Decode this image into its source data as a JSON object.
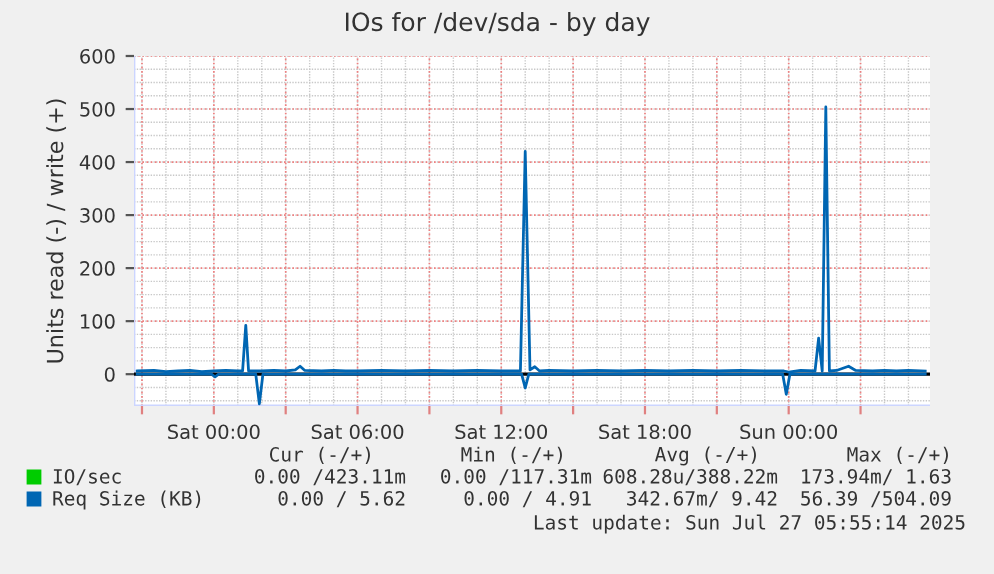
{
  "chart_data": {
    "type": "line",
    "title": "IOs for /dev/sda - by day",
    "ylabel": "Units read (-) / write (+)",
    "xlim": [
      "2025-07-25T20:40",
      "2025-07-27T05:54"
    ],
    "ylim": [
      -60,
      600
    ],
    "xticks": [
      {
        "value": "2025-07-25T21:00",
        "label": null
      },
      {
        "value": "2025-07-26T00:00",
        "label": "Sat 00:00"
      },
      {
        "value": "2025-07-26T03:00",
        "label": null
      },
      {
        "value": "2025-07-26T06:00",
        "label": "Sat 06:00"
      },
      {
        "value": "2025-07-26T09:00",
        "label": null
      },
      {
        "value": "2025-07-26T12:00",
        "label": "Sat 12:00"
      },
      {
        "value": "2025-07-26T15:00",
        "label": null
      },
      {
        "value": "2025-07-26T18:00",
        "label": "Sat 18:00"
      },
      {
        "value": "2025-07-26T21:00",
        "label": null
      },
      {
        "value": "2025-07-27T00:00",
        "label": "Sun 00:00"
      },
      {
        "value": "2025-07-27T03:00",
        "label": null
      }
    ],
    "yticks": [
      0,
      100,
      200,
      300,
      400,
      500,
      600
    ],
    "grid": true,
    "legend": "bottom",
    "ref_lines": [
      {
        "axis": "y",
        "value": 0,
        "label": null,
        "color": "#000000"
      }
    ],
    "series": [
      {
        "name": "IO/sec",
        "color": "#00cc00"
      },
      {
        "name": "Req Size (KB)",
        "color": "#0066b3",
        "x": [
          "2025-07-25T20:48",
          "2025-07-25T21:30",
          "2025-07-25T22:00",
          "2025-07-25T22:30",
          "2025-07-25T23:00",
          "2025-07-25T23:30",
          "2025-07-26T00:00",
          "2025-07-26T00:30",
          "2025-07-26T01:00",
          "2025-07-26T01:12",
          "2025-07-26T01:20",
          "2025-07-26T01:27",
          "2025-07-26T02:00",
          "2025-07-26T02:30",
          "2025-07-26T03:00",
          "2025-07-26T03:24",
          "2025-07-26T03:36",
          "2025-07-26T03:48",
          "2025-07-26T04:30",
          "2025-07-26T05:00",
          "2025-07-26T05:30",
          "2025-07-26T06:00",
          "2025-07-26T07:00",
          "2025-07-26T08:00",
          "2025-07-26T09:00",
          "2025-07-26T10:00",
          "2025-07-26T11:00",
          "2025-07-26T12:00",
          "2025-07-26T12:48",
          "2025-07-26T13:00",
          "2025-07-26T13:12",
          "2025-07-26T13:24",
          "2025-07-26T13:36",
          "2025-07-26T14:00",
          "2025-07-26T15:00",
          "2025-07-26T16:00",
          "2025-07-26T17:00",
          "2025-07-26T18:00",
          "2025-07-26T19:00",
          "2025-07-26T20:00",
          "2025-07-26T21:00",
          "2025-07-26T22:00",
          "2025-07-26T23:00",
          "2025-07-26T23:48",
          "2025-07-27T00:00",
          "2025-07-27T00:30",
          "2025-07-27T01:06",
          "2025-07-27T01:15",
          "2025-07-27T01:24",
          "2025-07-27T01:33",
          "2025-07-27T01:42",
          "2025-07-27T02:00",
          "2025-07-27T02:30",
          "2025-07-27T02:48",
          "2025-07-27T03:30",
          "2025-07-27T04:00",
          "2025-07-27T04:30",
          "2025-07-27T05:00",
          "2025-07-27T05:42"
        ],
        "values": [
          6,
          7,
          5,
          6,
          7,
          5,
          6,
          7,
          6,
          6,
          92,
          6,
          6,
          7,
          6,
          8,
          15,
          7,
          6,
          7,
          6,
          6,
          7,
          6,
          7,
          6,
          7,
          6,
          6,
          420,
          8,
          14,
          6,
          7,
          6,
          7,
          6,
          7,
          6,
          7,
          6,
          7,
          6,
          6,
          4,
          7,
          6,
          68,
          6,
          504,
          6,
          7,
          15,
          7,
          6,
          7,
          6,
          7,
          6
        ]
      },
      {
        "color": "#0066b3",
        "x": [
          "2025-07-25T20:48",
          "2025-07-25T23:54",
          "2025-07-26T00:03",
          "2025-07-26T00:12",
          "2025-07-26T01:45",
          "2025-07-26T01:54",
          "2025-07-26T02:03",
          "2025-07-26T12:51",
          "2025-07-26T13:00",
          "2025-07-26T13:09",
          "2025-07-26T23:45",
          "2025-07-26T23:54",
          "2025-07-27T00:03",
          "2025-07-27T05:42"
        ],
        "values": [
          0,
          0,
          -5,
          0,
          0,
          -56,
          0,
          0,
          -26,
          0,
          0,
          -38,
          0,
          0
        ]
      }
    ],
    "annotations": [
      "Cur (-/+)",
      "Min (-/+)",
      "Avg (-/+)",
      "Max (-/+)",
      "0.00 /423.11m",
      "0.00 /117.31m",
      "608.28u/388.22m",
      "173.94m/ 1.63",
      "0.00 / 5.62",
      "0.00 / 4.91",
      "342.67m/ 9.42",
      "56.39 /504.09",
      "Last update: Sun Jul 27 05:55:14 2025"
    ]
  }
}
